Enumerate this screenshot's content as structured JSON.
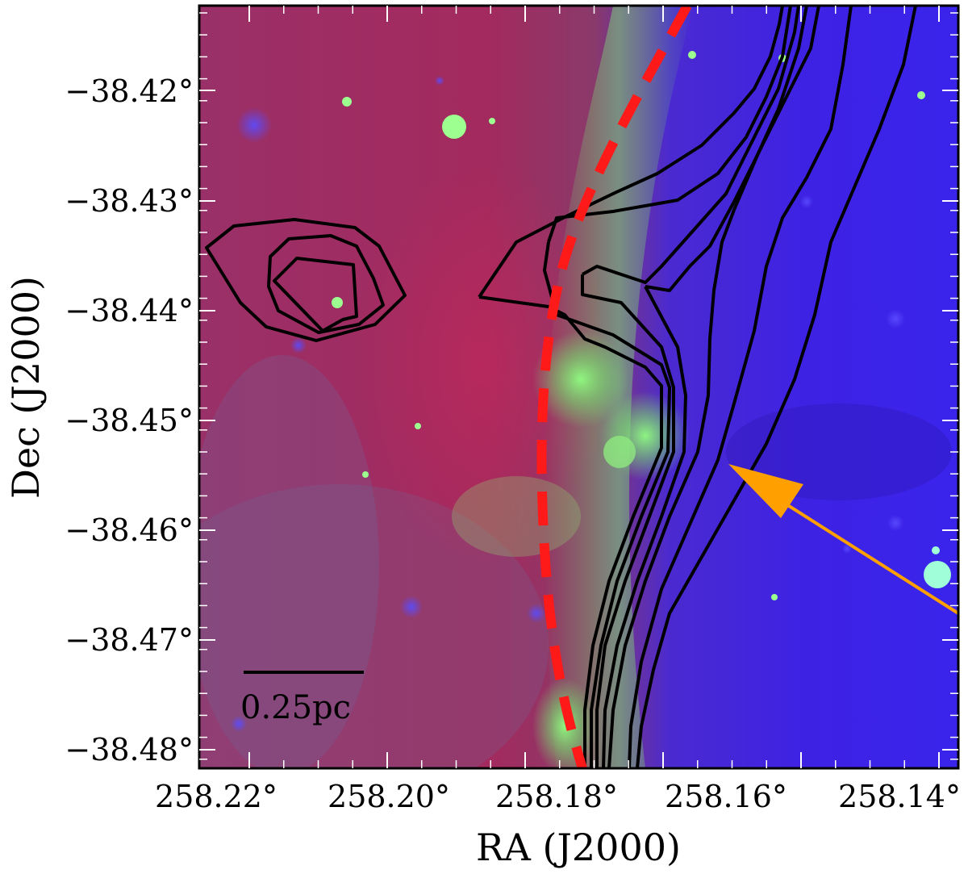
{
  "figure": {
    "x_axis_title": "RA (J2000)",
    "y_axis_title": "Dec (J2000)",
    "x_tick_labels": [
      "258.22°",
      "258.20°",
      "258.18°",
      "258.16°",
      "258.14°"
    ],
    "y_tick_labels": [
      "−38.42°",
      "−38.43°",
      "−38.44°",
      "−38.45°",
      "−38.46°",
      "−38.47°",
      "−38.48°"
    ],
    "scale_bar_label": "0.25pc",
    "colors": {
      "red_channel_tone": "#a8285c",
      "green_channel_tone": "#7fe07a",
      "blue_channel_tone": "#3a20e8",
      "dashed_curve": "#ff1a1a",
      "arrow": "#ffa000",
      "contours": "#000000"
    }
  }
}
